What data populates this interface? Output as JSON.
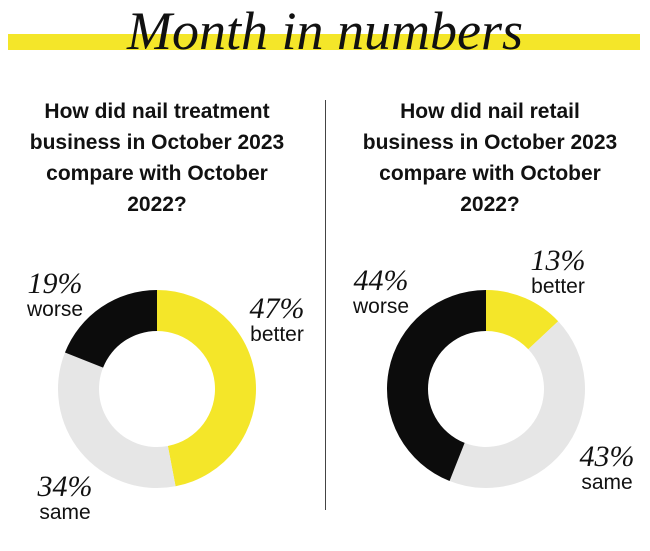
{
  "title": "Month in numbers",
  "colors": {
    "better": "#f4e629",
    "same": "#e6e6e6",
    "worse": "#0c0c0c",
    "accent": "#f4e629"
  },
  "chart_data": [
    {
      "type": "pie",
      "title": "How did nail treatment business in October 2023 compare with October 2022?",
      "slices": [
        {
          "label": "better",
          "value": 47,
          "display": "47%"
        },
        {
          "label": "same",
          "value": 34,
          "display": "34%"
        },
        {
          "label": "worse",
          "value": 19,
          "display": "19%"
        }
      ]
    },
    {
      "type": "pie",
      "title": "How did nail retail business in October 2023 compare with October 2022?",
      "slices": [
        {
          "label": "better",
          "value": 13,
          "display": "13%"
        },
        {
          "label": "same",
          "value": 43,
          "display": "43%"
        },
        {
          "label": "worse",
          "value": 44,
          "display": "44%"
        }
      ]
    }
  ]
}
